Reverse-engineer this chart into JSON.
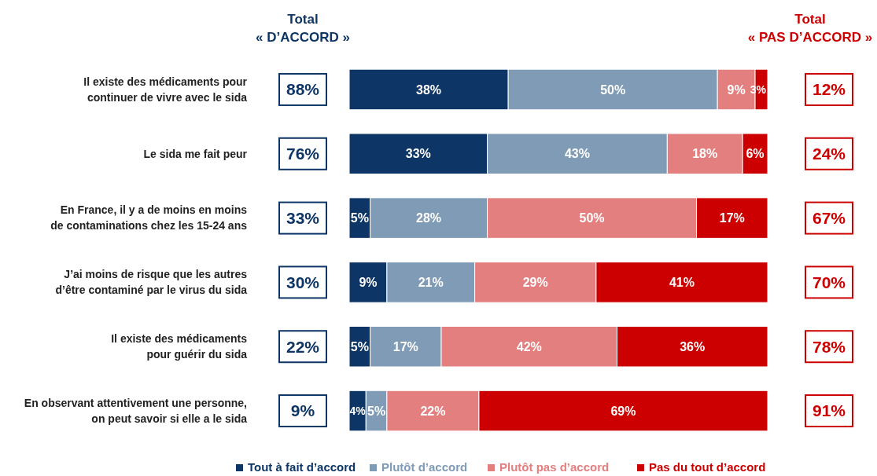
{
  "chart_data": {
    "type": "bar",
    "orientation": "horizontal",
    "stacked": true,
    "legend": "bottom",
    "categories": [
      "Il existe des médicaments pour continuer de vivre avec le sida",
      "Le sida me fait peur",
      "En France, il y a de moins en moins de contaminations chez les 15-24 ans",
      "J’ai moins de risque que les autres d’être contaminé par le virus du sida",
      "Il existe des médicaments pour guérir du sida",
      "En observant attentivement une personne, on peut savoir si elle a le sida"
    ],
    "series": [
      {
        "name": "Tout à fait d’accord",
        "color": "#0d3565",
        "values": [
          38,
          33,
          5,
          9,
          5,
          4
        ],
        "value_labels": [
          "38%",
          "33%",
          "5%",
          "9%",
          "5%",
          "4%"
        ]
      },
      {
        "name": "Plutôt d’accord",
        "color": "#7f9bb6",
        "values": [
          50,
          43,
          28,
          21,
          17,
          5
        ],
        "value_labels": [
          "50%",
          "43%",
          "28%",
          "21%",
          "17%",
          "5%"
        ]
      },
      {
        "name": "Plutôt pas d’accord",
        "color": "#e47f7f",
        "values": [
          9,
          18,
          50,
          29,
          42,
          22
        ],
        "value_labels": [
          "9%",
          "18%",
          "50%",
          "29%",
          "42%",
          "22%"
        ]
      },
      {
        "name": "Pas du tout d’accord",
        "color": "#cc0000",
        "values": [
          3,
          6,
          17,
          41,
          36,
          69
        ],
        "value_labels": [
          "3%",
          "6%",
          "17%",
          "41%",
          "36%",
          "69%"
        ]
      }
    ],
    "annotations": [
      "Total",
      "« D’ACCORD »",
      "Total",
      "« PAS D’ACCORD »",
      "88%",
      "76%",
      "33%",
      "30%",
      "22%",
      "9%",
      "12%",
      "24%",
      "67%",
      "70%",
      "78%",
      "91%"
    ]
  }
}
